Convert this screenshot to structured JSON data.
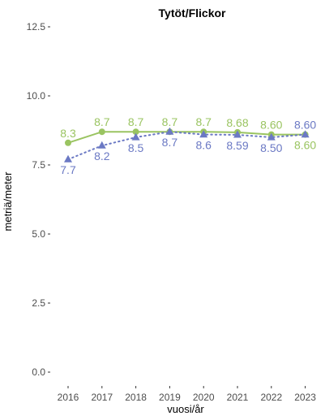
{
  "chart_data": {
    "type": "line",
    "title": "Tytöt/Flickor",
    "xlabel": "vuosi/år",
    "ylabel": "metriä/meter",
    "categories": [
      "2016",
      "2017",
      "2018",
      "2019",
      "2020",
      "2021",
      "2022",
      "2023"
    ],
    "ylim": [
      0,
      12.5
    ],
    "yticks": [
      "0.0",
      "2.5",
      "5.0",
      "7.5",
      "10.0",
      "12.5"
    ],
    "grid": false,
    "series": [
      {
        "color": "#9ac461",
        "line_style": "solid",
        "marker": "circle",
        "values": [
          8.3,
          8.7,
          8.7,
          8.7,
          8.7,
          8.68,
          8.6,
          8.6
        ],
        "labels": [
          "8.3",
          "8.7",
          "8.7",
          "8.7",
          "8.7",
          "8.68",
          "8.60",
          "8.60"
        ]
      },
      {
        "color": "#6b79c4",
        "line_style": "dotted",
        "marker": "triangle",
        "values": [
          7.7,
          8.2,
          8.5,
          8.7,
          8.6,
          8.59,
          8.5,
          8.6
        ],
        "labels": [
          "7.7",
          "8.2",
          "8.5",
          "8.7",
          "8.6",
          "8.59",
          "8.50",
          "8.60"
        ]
      }
    ]
  }
}
